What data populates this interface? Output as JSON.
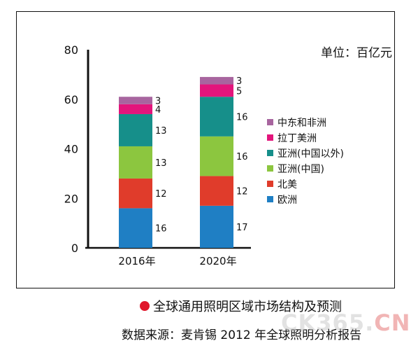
{
  "unit_label": "单位：百亿元",
  "caption": "全球通用照明区域市场结构及预测",
  "source": "数据来源：麦肯锡 2012 年全球照明分析报告",
  "watermark": {
    "main": "CK365",
    "dot": ".",
    "accent": "CN"
  },
  "chart_data": {
    "type": "bar",
    "stacked": true,
    "categories": [
      "2016年",
      "2020年"
    ],
    "series": [
      {
        "name": "欧洲",
        "values": [
          16,
          17
        ],
        "color": "#1f7fc4"
      },
      {
        "name": "北美",
        "values": [
          12,
          12
        ],
        "color": "#e03c2b"
      },
      {
        "name": "亚洲(中国)",
        "values": [
          13,
          16
        ],
        "color": "#8cc63f"
      },
      {
        "name": "亚洲(中国以外)",
        "values": [
          13,
          16
        ],
        "color": "#168f8a"
      },
      {
        "name": "拉丁美洲",
        "values": [
          4,
          5
        ],
        "color": "#e3157c"
      },
      {
        "name": "中东和非洲",
        "values": [
          3,
          3
        ],
        "color": "#a8659f"
      }
    ],
    "yticks": [
      0,
      20,
      40,
      60,
      80
    ],
    "ylim": [
      0,
      80
    ],
    "title": "",
    "xlabel": "",
    "ylabel": "",
    "legend_position": "right"
  }
}
